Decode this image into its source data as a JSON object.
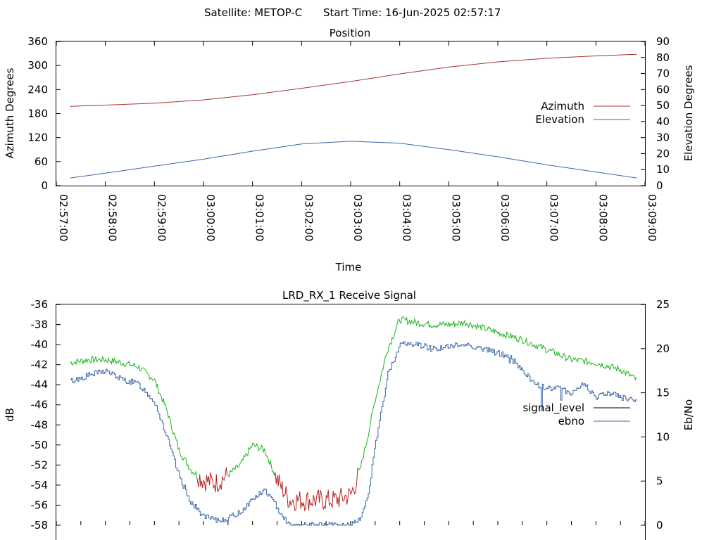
{
  "header": {
    "satellite": "Satellite: METOP-C",
    "start_time": "Start Time: 16-Jun-2025 02:57:17"
  },
  "colors": {
    "azimuth": "#a83333",
    "elevation": "#3a67a8",
    "signal_good": "#19b419",
    "signal_low": "#b42323",
    "ebno": "#3a67a8",
    "legend_signal": "#000000",
    "axis": "#000000"
  },
  "chart_data": [
    {
      "type": "line",
      "title": "Position",
      "xlabel": "Time",
      "ylabel": "Azimuth Degrees",
      "y2label": "Elevation Degrees",
      "xlim": [
        "02:57:00",
        "03:09:00"
      ],
      "ylim": [
        0,
        360
      ],
      "y2lim": [
        0,
        90
      ],
      "xticks": [
        "02:57:00",
        "02:58:00",
        "02:59:00",
        "03:00:00",
        "03:01:00",
        "03:02:00",
        "03:03:00",
        "03:04:00",
        "03:05:00",
        "03:06:00",
        "03:07:00",
        "03:08:00",
        "03:09:00"
      ],
      "yticks": [
        "0",
        "60",
        "120",
        "180",
        "240",
        "300",
        "360"
      ],
      "y2ticks": [
        "0",
        "10",
        "20",
        "30",
        "40",
        "50",
        "60",
        "70",
        "80",
        "90"
      ],
      "legend_position": "right",
      "series": [
        {
          "name": "Azimuth",
          "axis": "y",
          "x": [
            "02:57:17",
            "02:58:00",
            "02:59:00",
            "03:00:00",
            "03:01:00",
            "03:02:00",
            "03:03:00",
            "03:04:00",
            "03:05:00",
            "03:06:00",
            "03:07:00",
            "03:08:00",
            "03:08:50"
          ],
          "values": [
            198,
            201,
            206,
            214,
            227,
            243,
            260,
            279,
            296,
            309,
            318,
            324,
            328
          ]
        },
        {
          "name": "Elevation",
          "axis": "y2",
          "x": [
            "02:57:17",
            "02:58:00",
            "02:59:00",
            "03:00:00",
            "03:01:00",
            "03:02:00",
            "03:03:00",
            "03:04:00",
            "03:05:00",
            "03:06:00",
            "03:07:00",
            "03:08:00",
            "03:08:50"
          ],
          "values": [
            4.8,
            7.8,
            12.2,
            16.5,
            21.5,
            26,
            27.7,
            26.5,
            22.5,
            18,
            13,
            8.5,
            4.8
          ]
        }
      ]
    },
    {
      "type": "line",
      "title": "LRD_RX_1 Receive Signal",
      "ylabel": "dB",
      "y2label": "Eb/No",
      "xlim": [
        "02:57:00",
        "03:09:00"
      ],
      "ylim": [
        -58,
        -36
      ],
      "y2lim": [
        0,
        25
      ],
      "yticks": [
        "-58",
        "-56",
        "-54",
        "-52",
        "-50",
        "-48",
        "-46",
        "-44",
        "-42",
        "-40",
        "-38",
        "-36"
      ],
      "y2ticks": [
        "0",
        "5",
        "10",
        "15",
        "20",
        "25"
      ],
      "legend_position": "right",
      "series": [
        {
          "name": "signal_level",
          "axis": "y",
          "x": [
            "02:57:17",
            "02:57:40",
            "02:58:00",
            "02:58:20",
            "02:58:40",
            "02:59:00",
            "02:59:15",
            "02:59:30",
            "02:59:45",
            "03:00:00",
            "03:00:15",
            "03:00:30",
            "03:00:45",
            "03:01:00",
            "03:01:15",
            "03:01:30",
            "03:01:45",
            "03:02:00",
            "03:02:20",
            "03:02:40",
            "03:03:00",
            "03:03:10",
            "03:03:20",
            "03:03:30",
            "03:03:45",
            "03:04:00",
            "03:04:20",
            "03:04:40",
            "03:05:00",
            "03:05:20",
            "03:05:40",
            "03:06:00",
            "03:06:30",
            "03:07:00",
            "03:07:30",
            "03:08:00",
            "03:08:30",
            "03:08:50"
          ],
          "values": [
            -41.8,
            -41.5,
            -41.5,
            -41.8,
            -42.2,
            -43.5,
            -46.5,
            -50.5,
            -52.5,
            -53.5,
            -53.8,
            -53.0,
            -52.0,
            -50.0,
            -50.5,
            -53.5,
            -55.5,
            -55.5,
            -55.5,
            -55.5,
            -55.0,
            -53.0,
            -49.5,
            -45.5,
            -40.5,
            -37.5,
            -37.8,
            -38.0,
            -38.0,
            -37.8,
            -38.3,
            -38.8,
            -39.5,
            -40.5,
            -41.5,
            -41.8,
            -42.5,
            -43.5
          ]
        },
        {
          "name": "ebno",
          "axis": "y2",
          "x": [
            "02:57:17",
            "02:57:40",
            "02:58:00",
            "02:58:20",
            "02:58:40",
            "02:59:00",
            "02:59:15",
            "02:59:30",
            "02:59:45",
            "03:00:00",
            "03:00:15",
            "03:00:30",
            "03:00:45",
            "03:01:00",
            "03:01:15",
            "03:01:30",
            "03:01:45",
            "03:02:00",
            "03:02:20",
            "03:02:40",
            "03:03:00",
            "03:03:10",
            "03:03:20",
            "03:03:30",
            "03:03:45",
            "03:04:00",
            "03:04:20",
            "03:04:40",
            "03:05:00",
            "03:05:20",
            "03:05:40",
            "03:06:00",
            "03:06:15",
            "03:06:30",
            "03:06:45",
            "03:07:00",
            "03:07:15",
            "03:07:30",
            "03:07:45",
            "03:08:00",
            "03:08:15",
            "03:08:30",
            "03:08:50"
          ],
          "values": [
            16.3,
            17,
            17.5,
            16.5,
            16,
            14,
            10,
            5.5,
            2.5,
            1,
            0.5,
            0.8,
            1.5,
            3,
            4,
            2,
            0,
            0,
            0,
            0,
            0,
            0.5,
            3,
            9,
            17,
            20.5,
            20.5,
            20,
            20.2,
            20.5,
            20,
            19.5,
            19,
            17.5,
            16,
            15.5,
            15.5,
            15,
            16,
            14.5,
            15,
            14.5,
            14
          ]
        }
      ]
    }
  ]
}
